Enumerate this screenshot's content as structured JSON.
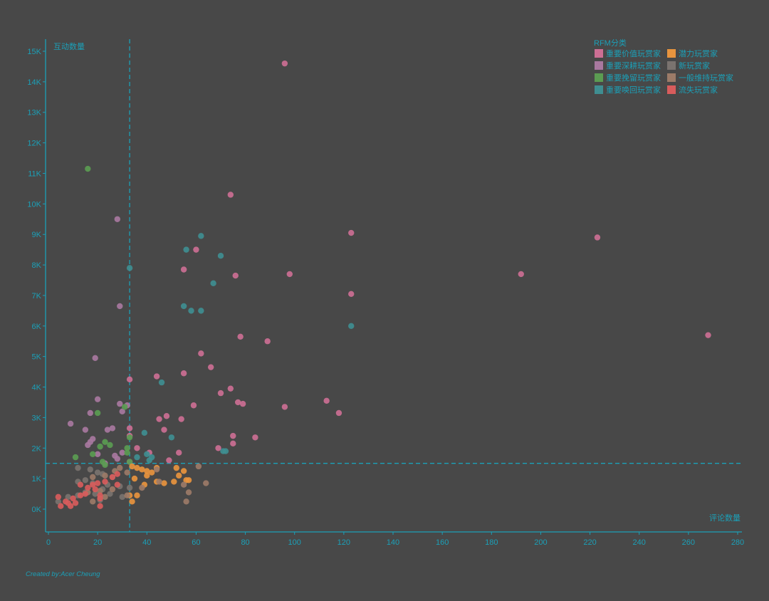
{
  "chart_data": {
    "type": "scatter",
    "xlabel": "评论数量",
    "ylabel": "互动数量",
    "xlim": [
      0,
      282
    ],
    "ylim": [
      -750,
      15500
    ],
    "x_ticks": [
      0,
      20,
      40,
      60,
      80,
      100,
      120,
      140,
      160,
      180,
      200,
      220,
      240,
      260,
      280
    ],
    "x_tick_labels": [
      "0",
      "20",
      "40",
      "60",
      "80",
      "100",
      "120",
      "140",
      "160",
      "180",
      "200",
      "220",
      "240",
      "260",
      "280"
    ],
    "y_ticks": [
      0,
      1000,
      2000,
      3000,
      4000,
      5000,
      6000,
      7000,
      8000,
      9000,
      10000,
      11000,
      12000,
      13000,
      14000,
      15000
    ],
    "y_tick_labels": [
      "0K",
      "1K",
      "2K",
      "3K",
      "4K",
      "5K",
      "6K",
      "7K",
      "8K",
      "9K",
      "10K",
      "11K",
      "12K",
      "13K",
      "14K",
      "15K"
    ],
    "reference_lines": {
      "x": 33,
      "y": 1500
    },
    "grid": false,
    "legend": {
      "title": "RFM分类",
      "placement": "top-right",
      "columns": 2
    },
    "credit": "Created by:Acer Cheung",
    "series": [
      {
        "name": "重要价值玩赏家",
        "color": "#cc6f94",
        "points": [
          [
            96,
            14600
          ],
          [
            74,
            10300
          ],
          [
            123,
            9050
          ],
          [
            223,
            8900
          ],
          [
            60,
            8500
          ],
          [
            55,
            7850
          ],
          [
            76,
            7650
          ],
          [
            98,
            7700
          ],
          [
            192,
            7700
          ],
          [
            123,
            7050
          ],
          [
            78,
            5650
          ],
          [
            89,
            5500
          ],
          [
            268,
            5700
          ],
          [
            62,
            5100
          ],
          [
            66,
            4650
          ],
          [
            44,
            4350
          ],
          [
            55,
            4450
          ],
          [
            33,
            4250
          ],
          [
            74,
            3950
          ],
          [
            70,
            3800
          ],
          [
            113,
            3550
          ],
          [
            77,
            3500
          ],
          [
            79,
            3450
          ],
          [
            96,
            3350
          ],
          [
            118,
            3150
          ],
          [
            59,
            3400
          ],
          [
            48,
            3050
          ],
          [
            45,
            2950
          ],
          [
            54,
            2950
          ],
          [
            33,
            2650
          ],
          [
            47,
            2600
          ],
          [
            75,
            2400
          ],
          [
            33,
            2400
          ],
          [
            84,
            2350
          ],
          [
            75,
            2150
          ],
          [
            69,
            2000
          ],
          [
            36,
            2000
          ],
          [
            53,
            1850
          ],
          [
            41,
            1850
          ],
          [
            49,
            1600
          ],
          [
            33,
            1550
          ]
        ]
      },
      {
        "name": "重要深耕玩赏家",
        "color": "#a8789f",
        "points": [
          [
            28,
            9500
          ],
          [
            29,
            6650
          ],
          [
            19,
            4950
          ],
          [
            20,
            3600
          ],
          [
            29,
            3450
          ],
          [
            17,
            3150
          ],
          [
            30,
            3200
          ],
          [
            32,
            3400
          ],
          [
            9,
            2800
          ],
          [
            15,
            2600
          ],
          [
            24,
            2600
          ],
          [
            26,
            2650
          ],
          [
            18,
            2300
          ],
          [
            17,
            2200
          ],
          [
            16,
            2100
          ],
          [
            30,
            1850
          ],
          [
            20,
            1800
          ],
          [
            27,
            1750
          ],
          [
            28,
            1650
          ],
          [
            23,
            1500
          ]
        ]
      },
      {
        "name": "重要挽留玩赏家",
        "color": "#5b9c52",
        "points": [
          [
            16,
            11150
          ],
          [
            20,
            3150
          ],
          [
            31,
            3350
          ],
          [
            23,
            2200
          ],
          [
            21,
            2050
          ],
          [
            25,
            2100
          ],
          [
            32,
            2000
          ],
          [
            33,
            2350
          ],
          [
            18,
            1800
          ],
          [
            11,
            1700
          ],
          [
            32,
            1850
          ],
          [
            22,
            1550
          ],
          [
            33,
            1550
          ],
          [
            23,
            1450
          ]
        ]
      },
      {
        "name": "重要唤回玩赏家",
        "color": "#3f8e91",
        "points": [
          [
            62,
            8950
          ],
          [
            56,
            8500
          ],
          [
            70,
            8300
          ],
          [
            33,
            7900
          ],
          [
            67,
            7400
          ],
          [
            55,
            6650
          ],
          [
            58,
            6500
          ],
          [
            62,
            6500
          ],
          [
            123,
            6000
          ],
          [
            46,
            4150
          ],
          [
            39,
            2500
          ],
          [
            50,
            2350
          ],
          [
            72,
            1900
          ],
          [
            71,
            1900
          ],
          [
            40,
            1800
          ],
          [
            42,
            1700
          ],
          [
            36,
            1700
          ],
          [
            41,
            1600
          ]
        ]
      },
      {
        "name": "潜力玩赏家",
        "color": "#e8943e",
        "points": [
          [
            34,
            1400
          ],
          [
            36,
            1350
          ],
          [
            38,
            1300
          ],
          [
            40,
            1250
          ],
          [
            42,
            1200
          ],
          [
            44,
            1350
          ],
          [
            52,
            1350
          ],
          [
            55,
            1250
          ],
          [
            40,
            1100
          ],
          [
            53,
            1100
          ],
          [
            35,
            1000
          ],
          [
            56,
            950
          ],
          [
            57,
            950
          ],
          [
            51,
            900
          ],
          [
            47,
            850
          ],
          [
            44,
            900
          ],
          [
            39,
            800
          ],
          [
            36,
            450
          ],
          [
            33,
            450
          ],
          [
            34,
            250
          ]
        ]
      },
      {
        "name": "新玩赏家",
        "color": "#7a736f",
        "points": [
          [
            12,
            1350
          ],
          [
            17,
            1300
          ],
          [
            20,
            1200
          ],
          [
            22,
            1150
          ],
          [
            26,
            1050
          ],
          [
            15,
            950
          ],
          [
            12,
            900
          ],
          [
            18,
            850
          ],
          [
            24,
            800
          ],
          [
            29,
            750
          ],
          [
            33,
            700
          ],
          [
            22,
            650
          ],
          [
            15,
            550
          ],
          [
            19,
            500
          ],
          [
            25,
            500
          ],
          [
            30,
            400
          ],
          [
            8,
            400
          ],
          [
            12,
            450
          ],
          [
            21,
            300
          ],
          [
            4,
            250
          ]
        ]
      },
      {
        "name": "一般维持玩赏家",
        "color": "#9c7b68",
        "points": [
          [
            61,
            1400
          ],
          [
            44,
            1300
          ],
          [
            29,
            1350
          ],
          [
            27,
            1250
          ],
          [
            32,
            1200
          ],
          [
            23,
            1100
          ],
          [
            18,
            1050
          ],
          [
            45,
            900
          ],
          [
            64,
            850
          ],
          [
            55,
            800
          ],
          [
            38,
            700
          ],
          [
            26,
            650
          ],
          [
            21,
            600
          ],
          [
            16,
            550
          ],
          [
            57,
            550
          ],
          [
            32,
            450
          ],
          [
            23,
            400
          ],
          [
            56,
            250
          ],
          [
            18,
            250
          ]
        ]
      },
      {
        "name": "流失玩赏家",
        "color": "#d85c5c",
        "points": [
          [
            28,
            1150
          ],
          [
            26,
            1050
          ],
          [
            23,
            900
          ],
          [
            20,
            850
          ],
          [
            18,
            800
          ],
          [
            13,
            800
          ],
          [
            28,
            800
          ],
          [
            16,
            700
          ],
          [
            19,
            650
          ],
          [
            15,
            500
          ],
          [
            21,
            450
          ],
          [
            13,
            450
          ],
          [
            10,
            350
          ],
          [
            4,
            400
          ],
          [
            21,
            350
          ],
          [
            11,
            200
          ],
          [
            8,
            200
          ],
          [
            7,
            250
          ],
          [
            9,
            100
          ],
          [
            5,
            100
          ],
          [
            21,
            100
          ]
        ]
      }
    ]
  }
}
